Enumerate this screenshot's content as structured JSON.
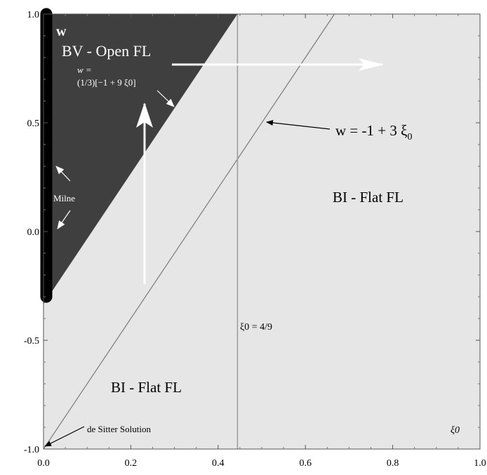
{
  "chart_data": {
    "type": "area",
    "xlim": [
      0,
      1
    ],
    "ylim": [
      -1,
      1
    ],
    "x_ticks": [
      "0.0",
      "0.2",
      "0.4",
      "0.6",
      "0.8",
      "1.0"
    ],
    "y_ticks": [
      "-1.0",
      "-0.5",
      "0.0",
      "0.5",
      "1.0"
    ],
    "grid": false,
    "regions": [
      {
        "name": "BV - Open FL",
        "fill": "#3f3f3f",
        "polygon": [
          [
            0,
            -0.3333
          ],
          [
            0,
            1
          ],
          [
            0.4444,
            1
          ]
        ]
      },
      {
        "name": "BI - Flat FL",
        "fill": "#e6e6e6",
        "polygon": [
          [
            0,
            -1
          ],
          [
            1,
            -1
          ],
          [
            1,
            1
          ],
          [
            0.4444,
            1
          ],
          [
            0,
            -0.3333
          ]
        ]
      }
    ],
    "lines": [
      {
        "label": "w = -1 + 3 ξ0",
        "points": [
          [
            0,
            -1
          ],
          [
            0.6667,
            1
          ]
        ],
        "color": "#7a7a7a"
      },
      {
        "label": "ξ0 = 4/9",
        "points": [
          [
            0.4444,
            -1
          ],
          [
            0.4444,
            1
          ]
        ],
        "color": "#9a9a9a"
      },
      {
        "label": "w = (1/3)[-1 + 9 ξ0]",
        "points": [
          [
            0,
            -0.3333
          ],
          [
            0.4444,
            1
          ]
        ],
        "color": "#3f3f3f"
      }
    ],
    "thick_segment": {
      "label": "Milne",
      "points": [
        [
          0,
          -0.3
        ],
        [
          0,
          1
        ]
      ],
      "color": "#000000"
    },
    "annotations": {
      "y_axis_name": "w",
      "region_top": "BV - Open FL",
      "boundary_formula_line1": "w =",
      "boundary_formula_line2": "(1/3)[−1 + 9 ξ0]",
      "diag_label": "w = -1 + 3 ξ",
      "diag_label_sub": "0",
      "region_right": "BI - Flat FL",
      "region_bottom": "BI - Flat FL",
      "vline_label": "ξ0 = 4/9",
      "milne": "Milne",
      "de_sitter": "de Sitter Solution",
      "x_axis_name": "ξ0"
    },
    "colors": {
      "dark_region": "#3f3f3f",
      "light_region": "#e6e6e6",
      "arrows_white": "#ffffff"
    }
  }
}
